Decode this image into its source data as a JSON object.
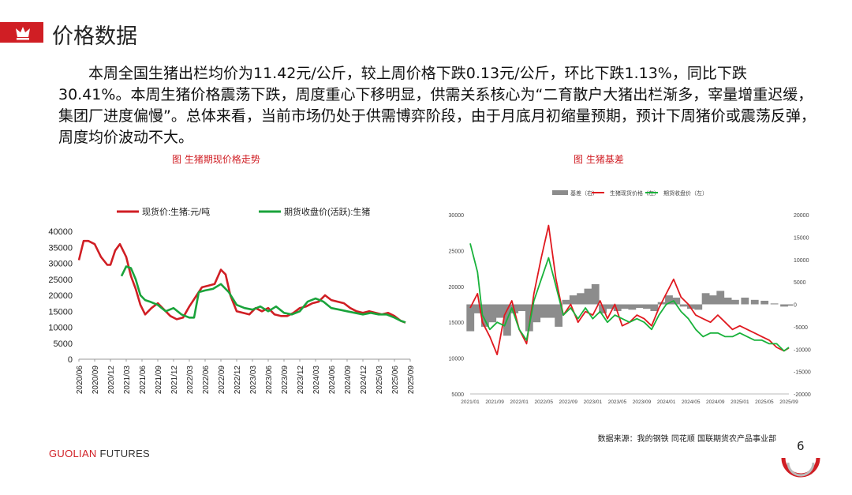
{
  "page": {
    "title": "价格数据",
    "summary": "本周全国生猪出栏均价为11.42元/公斤，较上周价格下跌0.13元/公斤，环比下跌1.13%，同比下跌30.41%。本周生猪价格震荡下跌，周度重心下移明显，供需关系核心为“二育散户大猪出栏渐多，宰量增重迟缓，集团厂进度偏慢”。总体来看，当前市场仍处于供需博弈阶段，由于月底月初缩量预期，预计下周猪价或震荡反弹，周度均价波动不大。",
    "source": "数据来源：我的钢铁  同花顺  国联期货农产品事业部",
    "brand_main": "GUOLIAN",
    "brand_sub": " FUTURES",
    "page_number": "6",
    "accent_color": "#d01e24"
  },
  "chart_data": [
    {
      "type": "line",
      "caption": "图  生猪期现价格走势",
      "xlabel": "",
      "ylabel": "",
      "ylim": [
        0,
        40000
      ],
      "yticks": [
        0,
        5000,
        10000,
        15000,
        20000,
        25000,
        30000,
        35000,
        40000
      ],
      "xtick_labels": [
        "2020/06",
        "2020/09",
        "2020/12",
        "2021/03",
        "2021/06",
        "2021/09",
        "2021/12",
        "2022/03",
        "2022/06",
        "2022/09",
        "2022/12",
        "2023/03",
        "2023/06",
        "2023/09",
        "2023/12",
        "2024/03",
        "2024/06",
        "2024/09",
        "2024/12",
        "2025/03",
        "2025/06",
        "2025/09"
      ],
      "legend_position": "top",
      "grid": false,
      "series": [
        {
          "name": "现货价:生猪:元/吨",
          "color": "#d01e24",
          "x": [
            0,
            0.3,
            0.6,
            1,
            1.4,
            1.8,
            2,
            2.3,
            2.6,
            3,
            3.3,
            3.6,
            3.9,
            4.2,
            4.6,
            5,
            5.4,
            5.8,
            6.2,
            6.6,
            7,
            7.4,
            7.8,
            8.2,
            8.6,
            9,
            9.3,
            9.6,
            10,
            10.4,
            10.8,
            11.2,
            11.6,
            12,
            12.4,
            12.8,
            13.2,
            13.6,
            14,
            14.4,
            14.8,
            15.2,
            15.6,
            16,
            16.4,
            16.8,
            17.2,
            17.6,
            18,
            18.4,
            18.8,
            19.2,
            19.6,
            20,
            20.4,
            20.7
          ],
          "values": [
            31000,
            37000,
            37000,
            36000,
            32000,
            29500,
            29500,
            34000,
            36000,
            32000,
            26000,
            22000,
            17000,
            14000,
            16000,
            17500,
            15500,
            13500,
            12500,
            13000,
            16500,
            19500,
            22500,
            23000,
            23500,
            28000,
            26500,
            20000,
            15000,
            14500,
            14000,
            16000,
            15000,
            16000,
            14000,
            13500,
            13500,
            14500,
            16000,
            16500,
            17500,
            18000,
            20000,
            18500,
            18000,
            17500,
            16000,
            15000,
            14500,
            15000,
            14500,
            14000,
            14500,
            13500,
            12000,
            11420
          ]
        },
        {
          "name": "期货收盘价(活跃):生猪",
          "color": "#1aa33b",
          "x": [
            2.7,
            3,
            3.3,
            3.6,
            3.9,
            4.2,
            4.5,
            5,
            5.5,
            6,
            6.5,
            7,
            7.3,
            7.6,
            8,
            8.5,
            9,
            9.5,
            10,
            10.5,
            11,
            11.5,
            12,
            12.5,
            13,
            13.5,
            14,
            14.5,
            15,
            15.5,
            16,
            16.5,
            17,
            17.5,
            18,
            18.5,
            19,
            19.5,
            20,
            20.4,
            20.7
          ],
          "values": [
            26000,
            29000,
            28500,
            25000,
            20000,
            18500,
            18000,
            17000,
            15000,
            16000,
            14000,
            13000,
            13000,
            21000,
            21500,
            22000,
            23500,
            21000,
            17000,
            16000,
            15500,
            16500,
            15000,
            16500,
            14500,
            14000,
            15000,
            18000,
            19000,
            18000,
            16000,
            15500,
            15000,
            14500,
            14000,
            14500,
            14000,
            14000,
            13000,
            12000,
            11500
          ]
        }
      ]
    },
    {
      "type": "line",
      "caption": "图  生猪基差",
      "ylim_left": [
        5000,
        30000
      ],
      "yticks_left": [
        5000,
        10000,
        15000,
        20000,
        25000,
        30000
      ],
      "ylim_right": [
        -20000,
        20000
      ],
      "yticks_right": [
        -20000,
        -15000,
        -10000,
        -5000,
        0,
        5000,
        10000,
        15000,
        20000
      ],
      "xtick_labels": [
        "2021/01",
        "2021/09",
        "2022/01",
        "2022/05",
        "2022/09",
        "2023/01",
        "2023/05",
        "2023/09",
        "2024/01",
        "2024/05",
        "2024/09",
        "2025/01",
        "2025/05",
        "2025/09"
      ],
      "legend": [
        "基差（右）",
        "生猪现货价格（左）",
        "期货收盘价（左）"
      ],
      "legend_position": "top",
      "grid": false,
      "series": [
        {
          "name": "基差（右）",
          "type": "area",
          "axis": "right",
          "color": "#8c8c8c",
          "x": [
            0,
            0.3,
            0.6,
            0.9,
            1.2,
            1.5,
            1.8,
            2.1,
            2.4,
            2.7,
            3,
            3.3,
            3.6,
            3.9,
            4.2,
            4.5,
            4.8,
            5.1,
            5.4,
            5.7,
            6,
            6.3,
            6.6,
            6.9,
            7.2,
            7.5,
            7.8,
            8.1,
            8.4,
            8.7,
            9,
            9.3,
            9.6,
            9.9,
            10.2,
            10.5,
            10.8,
            11.2,
            11.6,
            12,
            12.4,
            12.8,
            13
          ],
          "values": [
            -6000,
            -2000,
            -5000,
            -4000,
            -3000,
            -7000,
            -2000,
            -1500,
            -6000,
            -4000,
            -3000,
            -3000,
            -5000,
            1000,
            2000,
            2500,
            3500,
            4500,
            -2000,
            -1000,
            -1500,
            -1000,
            -1200,
            -800,
            -1000,
            -1500,
            500,
            2000,
            1500,
            -500,
            -1000,
            -1200,
            2500,
            2000,
            3000,
            1500,
            1000,
            1500,
            1000,
            800,
            200,
            -500,
            -300
          ]
        },
        {
          "name": "生猪现货价格（左）",
          "axis": "left",
          "color": "#e0191f",
          "x": [
            0,
            0.3,
            0.5,
            0.8,
            1.1,
            1.4,
            1.7,
            2,
            2.3,
            2.6,
            2.9,
            3.2,
            3.5,
            3.8,
            4.1,
            4.4,
            4.7,
            5,
            5.3,
            5.6,
            5.9,
            6.2,
            6.5,
            6.8,
            7.1,
            7.4,
            7.7,
            8,
            8.3,
            8.6,
            8.9,
            9.2,
            9.5,
            9.8,
            10.1,
            10.4,
            10.7,
            11,
            11.3,
            11.6,
            11.9,
            12.2,
            12.5,
            12.8,
            13
          ],
          "values": [
            17000,
            19000,
            15000,
            13000,
            10500,
            16000,
            18000,
            14000,
            12000,
            19000,
            24000,
            28500,
            21000,
            16000,
            17500,
            15000,
            16500,
            16000,
            18000,
            15500,
            17500,
            14500,
            15000,
            16000,
            15500,
            14500,
            17000,
            19000,
            21000,
            18500,
            17500,
            16000,
            15500,
            15000,
            16000,
            15000,
            14000,
            14500,
            14000,
            13500,
            13000,
            12500,
            11500,
            11000,
            11420
          ]
        },
        {
          "name": "期货收盘价（左）",
          "axis": "left",
          "color": "#19b23b",
          "x": [
            0,
            0.3,
            0.5,
            0.8,
            1.1,
            1.4,
            1.7,
            2,
            2.3,
            2.6,
            2.9,
            3.2,
            3.5,
            3.8,
            4.1,
            4.4,
            4.7,
            5,
            5.3,
            5.6,
            5.9,
            6.2,
            6.5,
            6.8,
            7.1,
            7.4,
            7.7,
            8,
            8.3,
            8.6,
            8.9,
            9.2,
            9.5,
            9.8,
            10.1,
            10.4,
            10.7,
            11,
            11.3,
            11.6,
            11.9,
            12.2,
            12.5,
            12.8,
            13
          ],
          "values": [
            26000,
            22000,
            16000,
            14000,
            15000,
            14500,
            17000,
            14000,
            12500,
            18000,
            21000,
            24000,
            20000,
            16000,
            17000,
            15500,
            17000,
            15500,
            16500,
            15000,
            16000,
            15500,
            15000,
            15500,
            15000,
            14000,
            16000,
            17500,
            18000,
            16500,
            15500,
            14000,
            13000,
            13500,
            13500,
            13000,
            13000,
            13500,
            13000,
            12500,
            12500,
            12000,
            12000,
            11000,
            11500
          ]
        }
      ]
    }
  ]
}
